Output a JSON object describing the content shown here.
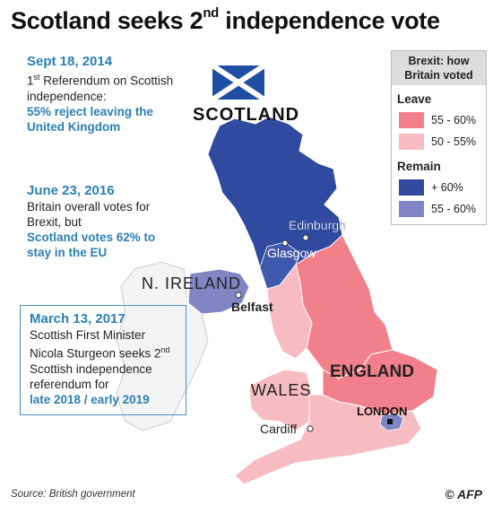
{
  "title": {
    "main": "Scotland seeks 2",
    "sup": "nd",
    "rest": " independence vote"
  },
  "timeline": [
    {
      "date": "Sept 18, 2014",
      "sup": "st",
      "t1": "1",
      "t2": " Referendum on Scottish independence:",
      "highlight": "55% reject leaving the United Kingdom"
    },
    {
      "date": "June 23, 2016",
      "t1": "Britain overall votes for Brexit, but",
      "highlight": "Scotland votes 62% to stay in the EU"
    },
    {
      "date": "March 13, 2017",
      "t1": "Scottish First Minister Nicola Sturgeon seeks 2",
      "sup": "nd",
      "t2": " Scottish independence referendum for",
      "highlight": "late 2018 / early 2019"
    }
  ],
  "map": {
    "labels": {
      "scotland": "SCOTLAND",
      "n_ireland": "N. IRELAND",
      "england": "ENGLAND",
      "wales": "WALES"
    },
    "cities": {
      "edinburgh": "Edinburgh",
      "glasgow": "Glasgow",
      "belfast": "Belfast",
      "cardiff": "Cardiff",
      "london": "LONDON"
    }
  },
  "legend": {
    "heading": "Brexit: how Britain voted",
    "groups": [
      {
        "name": "Leave",
        "items": [
          {
            "label": "55 - 60%",
            "color": "#f2808a"
          },
          {
            "label": "50 - 55%",
            "color": "#f7bcc2"
          }
        ]
      },
      {
        "name": "Remain",
        "items": [
          {
            "label": "+ 60%",
            "color": "#2f4a9e"
          },
          {
            "label": "55 - 60%",
            "color": "#7f86c4"
          }
        ]
      }
    ]
  },
  "colors": {
    "remain_strong": "#2f4a9e",
    "remain_mid": "#7f86c4",
    "leave_strong": "#f2808a",
    "leave_mid": "#f7bcc2",
    "accent": "#2a7fb5"
  },
  "source": "Source: British government",
  "credit": "© AFP"
}
